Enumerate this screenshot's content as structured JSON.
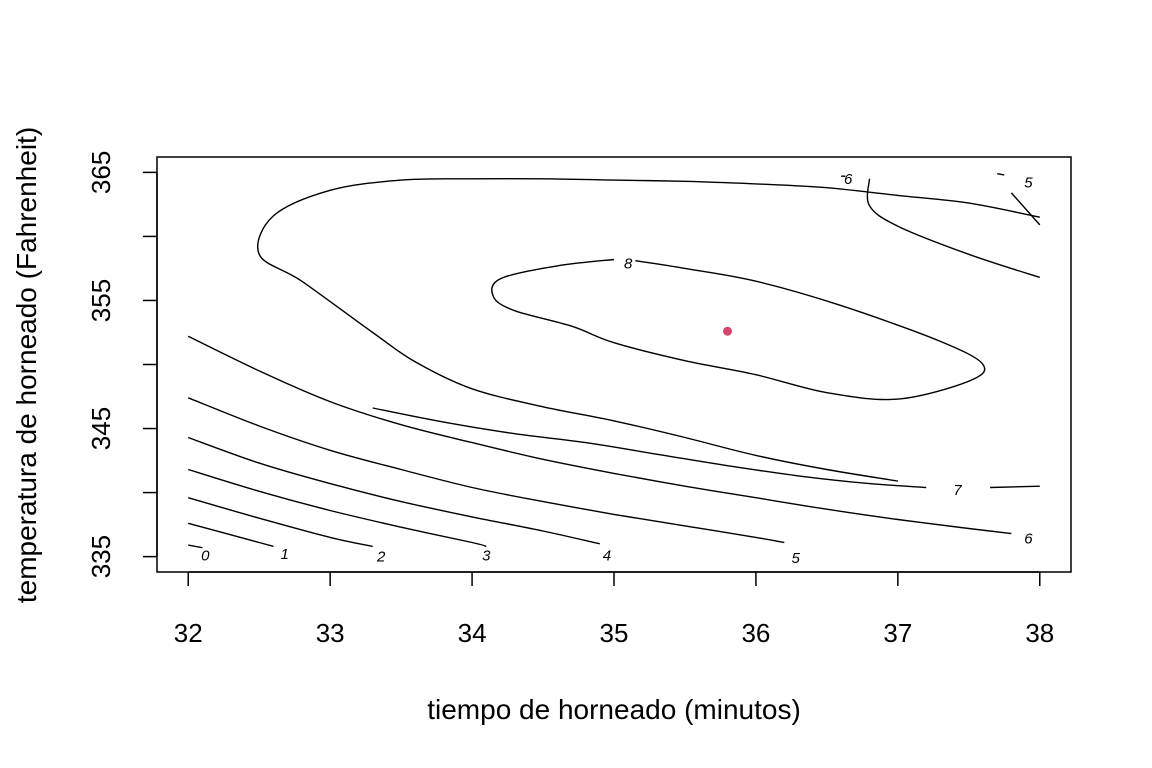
{
  "chart_data": {
    "type": "contour",
    "xlabel": "tiempo de horneado (minutos)",
    "ylabel": "temperatura de horneado (Fahrenheit)",
    "xlim": [
      31.78,
      38.22
    ],
    "ylim": [
      333.8,
      366.2
    ],
    "x_ticks": [
      32,
      33,
      34,
      35,
      36,
      37,
      38
    ],
    "y_ticks": [
      335,
      340,
      345,
      350,
      355,
      360,
      365
    ],
    "y_tick_labels": [
      "335",
      "345",
      "355",
      "365"
    ],
    "grid": false,
    "optimum_point": {
      "x": 35.8,
      "y": 352.6,
      "color": "#d6456b"
    },
    "line_color": "#000000",
    "contours": [
      {
        "level": "0",
        "points": [
          [
            32.0,
            335.9
          ],
          [
            32.1,
            335.7
          ]
        ],
        "label": {
          "text": "0",
          "x": 32.12,
          "y": 335.1
        }
      },
      {
        "level": "1",
        "points": [
          [
            32.0,
            337.6
          ],
          [
            32.5,
            336.1
          ],
          [
            32.6,
            335.8
          ]
        ],
        "label": {
          "text": "1",
          "x": 32.68,
          "y": 335.2
        }
      },
      {
        "level": "2",
        "points": [
          [
            32.0,
            339.6
          ],
          [
            32.5,
            338.0
          ],
          [
            33.0,
            336.5
          ],
          [
            33.3,
            335.8
          ]
        ],
        "label": {
          "text": "2",
          "x": 33.36,
          "y": 335.0
        }
      },
      {
        "level": "3",
        "points": [
          [
            32.0,
            341.8
          ],
          [
            32.5,
            340.1
          ],
          [
            33.0,
            338.6
          ],
          [
            33.5,
            337.3
          ],
          [
            34.0,
            336.1
          ],
          [
            34.1,
            335.8
          ]
        ],
        "label": {
          "text": "3",
          "x": 34.1,
          "y": 335.1
        }
      },
      {
        "level": "4",
        "points": [
          [
            32.0,
            344.3
          ],
          [
            32.5,
            342.3
          ],
          [
            33.0,
            340.7
          ],
          [
            33.5,
            339.3
          ],
          [
            34.0,
            338.1
          ],
          [
            34.5,
            337.0
          ],
          [
            34.9,
            336.0
          ]
        ],
        "label": {
          "text": "4",
          "x": 34.95,
          "y": 335.1
        }
      },
      {
        "level": "5",
        "points": [
          [
            32.0,
            347.4
          ],
          [
            32.5,
            345.2
          ],
          [
            33.0,
            343.3
          ],
          [
            33.5,
            341.8
          ],
          [
            34.0,
            340.4
          ],
          [
            34.5,
            339.3
          ],
          [
            35.0,
            338.3
          ],
          [
            35.5,
            337.4
          ],
          [
            36.0,
            336.5
          ],
          [
            36.2,
            336.1
          ]
        ],
        "label": {
          "text": "5",
          "x": 36.28,
          "y": 334.9
        }
      },
      {
        "level": "6",
        "points": [
          [
            32.0,
            352.2
          ],
          [
            32.5,
            349.5
          ],
          [
            33.0,
            347.1
          ],
          [
            33.5,
            345.3
          ],
          [
            34.0,
            343.9
          ],
          [
            34.5,
            342.6
          ],
          [
            35.0,
            341.5
          ],
          [
            35.5,
            340.5
          ],
          [
            36.0,
            339.6
          ],
          [
            36.5,
            338.7
          ],
          [
            37.0,
            337.9
          ],
          [
            37.5,
            337.2
          ],
          [
            37.8,
            336.8
          ]
        ],
        "label": {
          "text": "6",
          "x": 37.92,
          "y": 336.4
        }
      },
      {
        "level": "7",
        "points": [
          [
            33.3,
            346.6
          ],
          [
            33.8,
            345.5
          ],
          [
            34.3,
            344.6
          ],
          [
            34.8,
            343.9
          ],
          [
            35.3,
            343.0
          ],
          [
            35.8,
            342.1
          ],
          [
            36.3,
            341.3
          ],
          [
            36.8,
            340.7
          ],
          [
            37.2,
            340.4
          ]
        ],
        "label": {
          "text": "7",
          "x": 37.42,
          "y": 340.2
        }
      },
      {
        "level": "7b",
        "points": [
          [
            37.65,
            340.4
          ],
          [
            38.0,
            340.5
          ]
        ]
      },
      {
        "level": "8",
        "points": [
          [
            35.0,
            358.2
          ],
          [
            34.6,
            357.7
          ],
          [
            34.2,
            356.7
          ],
          [
            34.15,
            355.3
          ],
          [
            34.3,
            354.2
          ],
          [
            34.7,
            353.0
          ],
          [
            35.0,
            351.7
          ],
          [
            35.5,
            350.3
          ],
          [
            36.0,
            349.2
          ],
          [
            36.5,
            347.8
          ],
          [
            37.0,
            347.3
          ],
          [
            37.5,
            348.7
          ],
          [
            37.6,
            350.0
          ],
          [
            37.3,
            351.8
          ],
          [
            36.6,
            354.6
          ],
          [
            36.0,
            356.5
          ],
          [
            35.5,
            357.5
          ],
          [
            35.15,
            358.1
          ]
        ],
        "label": {
          "text": "8",
          "x": 35.1,
          "y": 357.9
        }
      },
      {
        "level": "7",
        "points": [
          [
            38.0,
            361.5
          ],
          [
            37.5,
            362.6
          ],
          [
            37.0,
            363.2
          ],
          [
            36.5,
            363.8
          ],
          [
            36.0,
            364.1
          ],
          [
            35.5,
            364.3
          ],
          [
            35.0,
            364.4
          ],
          [
            34.5,
            364.5
          ],
          [
            34.0,
            364.5
          ],
          [
            33.5,
            364.4
          ],
          [
            33.0,
            363.6
          ],
          [
            32.6,
            361.6
          ],
          [
            32.5,
            358.6
          ],
          [
            32.8,
            356.5
          ],
          [
            33.3,
            352.5
          ],
          [
            33.6,
            350.2
          ],
          [
            34.0,
            348.1
          ],
          [
            34.5,
            346.7
          ],
          [
            35.0,
            345.6
          ],
          [
            35.5,
            344.3
          ],
          [
            36.0,
            342.9
          ],
          [
            36.5,
            341.8
          ],
          [
            37.0,
            340.9
          ]
        ]
      },
      {
        "level": "6",
        "points": [
          [
            38.0,
            356.8
          ],
          [
            37.5,
            358.6
          ],
          [
            37.0,
            360.8
          ],
          [
            36.8,
            362.4
          ],
          [
            36.8,
            364.5
          ]
        ],
        "label": {
          "text": "6",
          "x": 36.65,
          "y": 364.5
        }
      },
      {
        "level": "6s",
        "points": [
          [
            36.6,
            364.7
          ],
          [
            36.63,
            364.7
          ]
        ]
      },
      {
        "level": "5",
        "points": [
          [
            38.0,
            360.9
          ],
          [
            37.8,
            363.4
          ]
        ],
        "label": {
          "text": "5",
          "x": 37.92,
          "y": 364.2
        }
      },
      {
        "level": "5s",
        "points": [
          [
            37.7,
            364.9
          ],
          [
            37.75,
            364.8
          ]
        ]
      }
    ]
  }
}
